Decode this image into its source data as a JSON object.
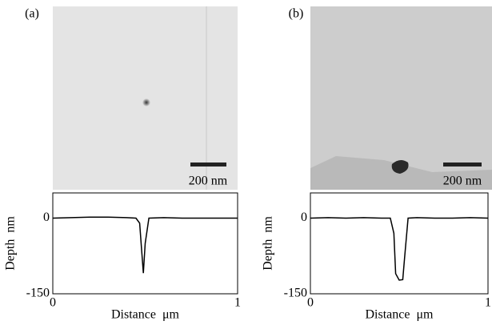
{
  "chart_data": [
    {
      "type": "line",
      "panel_label": "(a)",
      "scale_bar_label": "200 nm",
      "xlabel": "Distance  μm",
      "ylabel": "Depth  nm",
      "x": [
        0,
        0.1,
        0.2,
        0.3,
        0.4,
        0.45,
        0.47,
        0.48,
        0.49,
        0.5,
        0.52,
        0.6,
        0.7,
        0.8,
        0.9,
        1
      ],
      "values": [
        0,
        1,
        2,
        2,
        1,
        0,
        -10,
        -60,
        -109,
        -50,
        0,
        1,
        0,
        0,
        0,
        0
      ],
      "color": "#000000",
      "xlim": [
        0,
        1
      ],
      "xticks": [
        0,
        1
      ],
      "ylim": [
        -150,
        50
      ],
      "yticks": [
        -150,
        0
      ]
    },
    {
      "type": "line",
      "panel_label": "(b)",
      "scale_bar_label": "200 nm",
      "xlabel": "Distance  μm",
      "ylabel": "Depth  nm",
      "x": [
        0,
        0.1,
        0.2,
        0.3,
        0.4,
        0.45,
        0.47,
        0.48,
        0.5,
        0.52,
        0.53,
        0.55,
        0.6,
        0.7,
        0.8,
        0.9,
        1
      ],
      "values": [
        0,
        1,
        0,
        1,
        0,
        0,
        -30,
        -110,
        -123,
        -122,
        -80,
        0,
        1,
        0,
        0,
        1,
        0
      ],
      "color": "#000000",
      "xlim": [
        0,
        1
      ],
      "xticks": [
        0,
        1
      ],
      "ylim": [
        -150,
        50
      ],
      "yticks": [
        -150,
        0
      ]
    }
  ]
}
